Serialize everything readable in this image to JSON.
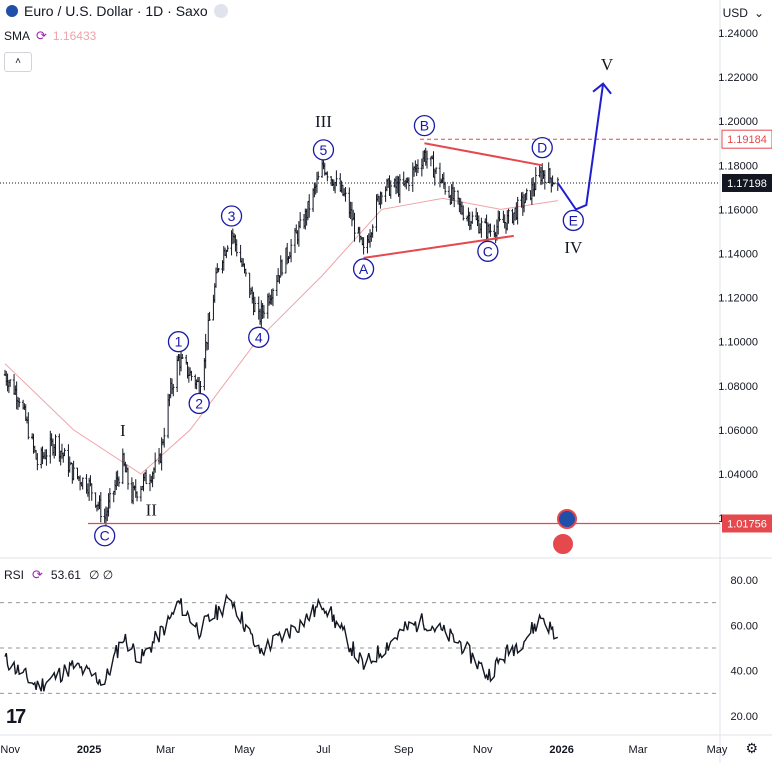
{
  "header": {
    "symbol_title": "Euro / U.S. Dollar · 1D · Saxo",
    "currency": "USD",
    "currency_caret": "⌄"
  },
  "indicator": {
    "sma_label": "SMA",
    "sma_value": "1.16433",
    "rsi_label": "RSI",
    "rsi_value": "53.61",
    "rsi_extra": "∅  ∅"
  },
  "collapse_label": "˄",
  "colors": {
    "candle": "#131722",
    "sma": "#f0a3a9",
    "trendline": "#e5484d",
    "wave": "#1a1aa8",
    "projection": "#1f1fd1",
    "rsi_line": "#131722",
    "axis_text": "#131722"
  },
  "chart_data": [
    {
      "type": "candlestick",
      "title": "Euro / U.S. Dollar · 1D · Saxo",
      "x_ticks": [
        "Nov",
        "2025",
        "Mar",
        "May",
        "Jul",
        "Sep",
        "Nov",
        "2026",
        "Mar",
        "May"
      ],
      "y_ticks": [
        "1.24000",
        "1.22000",
        "1.20000",
        "1.18000",
        "1.16000",
        "1.14000",
        "1.12000",
        "1.10000",
        "1.08000",
        "1.06000",
        "1.04000",
        "1.02000"
      ],
      "ylim": [
        1.005,
        1.245
      ],
      "price_labels": [
        {
          "label": "1.19184",
          "value": 1.19184,
          "style": "red-dashed"
        },
        {
          "label": "1.17198",
          "value": 1.17198,
          "style": "current"
        },
        {
          "label": "1.01756",
          "value": 1.01756,
          "style": "red-solid"
        }
      ],
      "approx_close_path": [
        {
          "date": "2024-10-28",
          "close": 1.085
        },
        {
          "date": "2024-11-08",
          "close": 1.075
        },
        {
          "date": "2024-11-22",
          "close": 1.045
        },
        {
          "date": "2024-12-06",
          "close": 1.055
        },
        {
          "date": "2024-12-20",
          "close": 1.04
        },
        {
          "date": "2025-01-01",
          "close": 1.035
        },
        {
          "date": "2025-01-13",
          "close": 1.02
        },
        {
          "date": "2025-01-27",
          "close": 1.045
        },
        {
          "date": "2025-02-03",
          "close": 1.03
        },
        {
          "date": "2025-02-24",
          "close": 1.045
        },
        {
          "date": "2025-03-04",
          "close": 1.075
        },
        {
          "date": "2025-03-11",
          "close": 1.092
        },
        {
          "date": "2025-03-27",
          "close": 1.08
        },
        {
          "date": "2025-04-11",
          "close": 1.135
        },
        {
          "date": "2025-04-21",
          "close": 1.15
        },
        {
          "date": "2025-05-12",
          "close": 1.11
        },
        {
          "date": "2025-05-30",
          "close": 1.135
        },
        {
          "date": "2025-06-16",
          "close": 1.155
        },
        {
          "date": "2025-07-01",
          "close": 1.18
        },
        {
          "date": "2025-07-18",
          "close": 1.165
        },
        {
          "date": "2025-08-01",
          "close": 1.14
        },
        {
          "date": "2025-08-15",
          "close": 1.17
        },
        {
          "date": "2025-09-01",
          "close": 1.17
        },
        {
          "date": "2025-09-17",
          "close": 1.185
        },
        {
          "date": "2025-10-01",
          "close": 1.172
        },
        {
          "date": "2025-10-15",
          "close": 1.16
        },
        {
          "date": "2025-11-05",
          "close": 1.15
        },
        {
          "date": "2025-11-20",
          "close": 1.155
        },
        {
          "date": "2025-12-05",
          "close": 1.165
        },
        {
          "date": "2025-12-17",
          "close": 1.177
        },
        {
          "date": "2025-12-29",
          "close": 1.172
        }
      ],
      "sma_path": [
        {
          "date": "2024-10-28",
          "value": 1.09
        },
        {
          "date": "2024-12-20",
          "value": 1.06
        },
        {
          "date": "2025-02-10",
          "value": 1.04
        },
        {
          "date": "2025-03-20",
          "value": 1.06
        },
        {
          "date": "2025-05-10",
          "value": 1.1
        },
        {
          "date": "2025-06-30",
          "value": 1.13
        },
        {
          "date": "2025-08-15",
          "value": 1.16
        },
        {
          "date": "2025-10-01",
          "value": 1.165
        },
        {
          "date": "2025-11-15",
          "value": 1.16
        },
        {
          "date": "2025-12-29",
          "value": 1.164
        }
      ],
      "wave_labels": [
        {
          "label": "C",
          "date": "2025-01-13",
          "price": 1.012,
          "style": "circle"
        },
        {
          "label": "I",
          "date": "2025-01-27",
          "price": 1.06,
          "style": "plain"
        },
        {
          "label": "II",
          "date": "2025-02-18",
          "price": 1.024,
          "style": "plain"
        },
        {
          "label": "1",
          "date": "2025-03-11",
          "price": 1.1,
          "style": "circle"
        },
        {
          "label": "2",
          "date": "2025-03-27",
          "price": 1.072,
          "style": "circle"
        },
        {
          "label": "3",
          "date": "2025-04-21",
          "price": 1.157,
          "style": "circle"
        },
        {
          "label": "4",
          "date": "2025-05-12",
          "price": 1.102,
          "style": "circle"
        },
        {
          "label": "5",
          "date": "2025-07-01",
          "price": 1.187,
          "style": "circle"
        },
        {
          "label": "III",
          "date": "2025-07-01",
          "price": 1.2,
          "style": "plain"
        },
        {
          "label": "A",
          "date": "2025-08-01",
          "price": 1.133,
          "style": "circle"
        },
        {
          "label": "B",
          "date": "2025-09-17",
          "price": 1.198,
          "style": "circle"
        },
        {
          "label": "C",
          "date": "2025-11-05",
          "price": 1.141,
          "style": "circle"
        },
        {
          "label": "D",
          "date": "2025-12-17",
          "price": 1.188,
          "style": "circle"
        },
        {
          "label": "E",
          "date": "2026-01-10",
          "price": 1.155,
          "style": "circle"
        },
        {
          "label": "IV",
          "date": "2026-01-10",
          "price": 1.143,
          "style": "plain"
        },
        {
          "label": "V",
          "date": "2026-02-05",
          "price": 1.226,
          "style": "plain"
        }
      ],
      "triangle_lines": [
        {
          "from": {
            "date": "2025-08-01",
            "price": 1.138
          },
          "to": {
            "date": "2025-11-25",
            "price": 1.148
          }
        },
        {
          "from": {
            "date": "2025-09-17",
            "price": 1.19
          },
          "to": {
            "date": "2025-12-17",
            "price": 1.18
          }
        }
      ],
      "projection_path": [
        {
          "date": "2025-12-29",
          "price": 1.172
        },
        {
          "date": "2026-01-12",
          "price": 1.16
        },
        {
          "date": "2026-01-20",
          "price": 1.162
        },
        {
          "date": "2026-02-02",
          "price": 1.217
        }
      ]
    },
    {
      "type": "line",
      "title": "RSI",
      "y_ticks": [
        "80.00",
        "60.00",
        "40.00",
        "20.00"
      ],
      "ylim": [
        15,
        85
      ],
      "levels": [
        70,
        50,
        30
      ],
      "approx_path": [
        {
          "date": "2024-10-28",
          "value": 45
        },
        {
          "date": "2024-11-22",
          "value": 33
        },
        {
          "date": "2024-12-20",
          "value": 42
        },
        {
          "date": "2025-01-13",
          "value": 35
        },
        {
          "date": "2025-01-27",
          "value": 55
        },
        {
          "date": "2025-02-10",
          "value": 45
        },
        {
          "date": "2025-03-04",
          "value": 62
        },
        {
          "date": "2025-03-11",
          "value": 70
        },
        {
          "date": "2025-03-27",
          "value": 58
        },
        {
          "date": "2025-04-21",
          "value": 72
        },
        {
          "date": "2025-05-12",
          "value": 48
        },
        {
          "date": "2025-06-16",
          "value": 62
        },
        {
          "date": "2025-07-01",
          "value": 70
        },
        {
          "date": "2025-08-01",
          "value": 42
        },
        {
          "date": "2025-09-01",
          "value": 58
        },
        {
          "date": "2025-09-17",
          "value": 62
        },
        {
          "date": "2025-10-15",
          "value": 52
        },
        {
          "date": "2025-11-05",
          "value": 38
        },
        {
          "date": "2025-11-20",
          "value": 48
        },
        {
          "date": "2025-12-05",
          "value": 55
        },
        {
          "date": "2025-12-17",
          "value": 64
        },
        {
          "date": "2025-12-29",
          "value": 54
        }
      ]
    }
  ]
}
